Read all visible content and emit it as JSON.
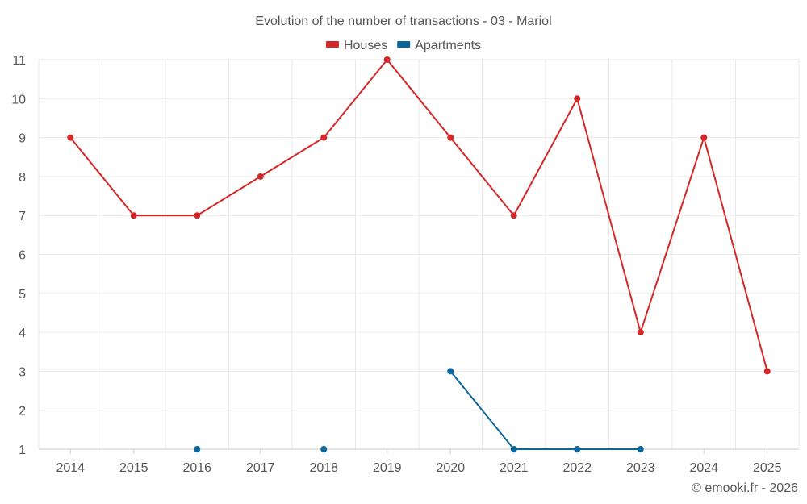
{
  "chart_data": {
    "type": "line",
    "title": "Evolution of the number of transactions - 03 - Mariol",
    "x": [
      "2014",
      "2015",
      "2016",
      "2017",
      "2018",
      "2019",
      "2020",
      "2021",
      "2022",
      "2023",
      "2024",
      "2025"
    ],
    "ylim": [
      1,
      11
    ],
    "yticks": [
      1,
      2,
      3,
      4,
      5,
      6,
      7,
      8,
      9,
      10,
      11
    ],
    "grid": true,
    "legend_position": "top-center",
    "series": [
      {
        "name": "Houses",
        "color": "#d62728",
        "values": [
          9,
          7,
          7,
          8,
          9,
          11,
          9,
          7,
          10,
          4,
          9,
          3
        ]
      },
      {
        "name": "Apartments",
        "color": "#08669a",
        "values": [
          null,
          null,
          1,
          null,
          1,
          null,
          3,
          1,
          1,
          1,
          null,
          null
        ]
      }
    ]
  },
  "credit": "© emooki.fr - 2026"
}
